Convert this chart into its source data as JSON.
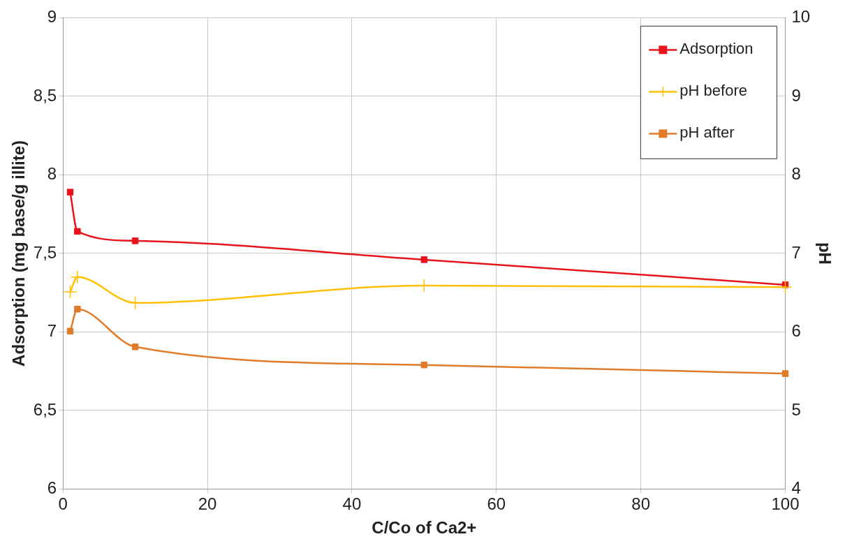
{
  "chart_data": {
    "type": "line",
    "xlabel": "C/Co of Ca2+",
    "ylabel": "Adsorption (mg base/g illite)",
    "y2label": "pH",
    "xlim": [
      0,
      100
    ],
    "xticks": [
      0,
      20,
      40,
      60,
      80,
      100
    ],
    "ylim": [
      6,
      9
    ],
    "yticks": [
      {
        "value": 6,
        "label": "6"
      },
      {
        "value": 6.5,
        "label": "6,5"
      },
      {
        "value": 7,
        "label": "7"
      },
      {
        "value": 7.5,
        "label": "7,5"
      },
      {
        "value": 8,
        "label": "8"
      },
      {
        "value": 8.5,
        "label": "8,5"
      },
      {
        "value": 9,
        "label": "9"
      }
    ],
    "y2lim": [
      4,
      10
    ],
    "y2ticks": [
      4,
      5,
      6,
      7,
      8,
      9,
      10
    ],
    "grid": true,
    "legend": "top right",
    "series": [
      {
        "name": "Adsorption",
        "color": "#e8141b",
        "marker": "square",
        "x": [
          1,
          2,
          10,
          50,
          100
        ],
        "values": [
          7.89,
          7.64,
          7.58,
          7.46,
          7.3
        ]
      },
      {
        "name": "pH before",
        "color": "#ffc000",
        "marker": "cross",
        "axis": "y2",
        "x": [
          1,
          2,
          10,
          50,
          100
        ],
        "values": [
          6.51,
          6.7,
          6.37,
          6.59,
          6.57
        ]
      },
      {
        "name": "pH after",
        "color": "#e07b2a",
        "marker": "square",
        "axis": "y2",
        "x": [
          1,
          2,
          10,
          50,
          100
        ],
        "values": [
          6.01,
          6.29,
          5.81,
          5.58,
          5.47
        ]
      }
    ]
  }
}
